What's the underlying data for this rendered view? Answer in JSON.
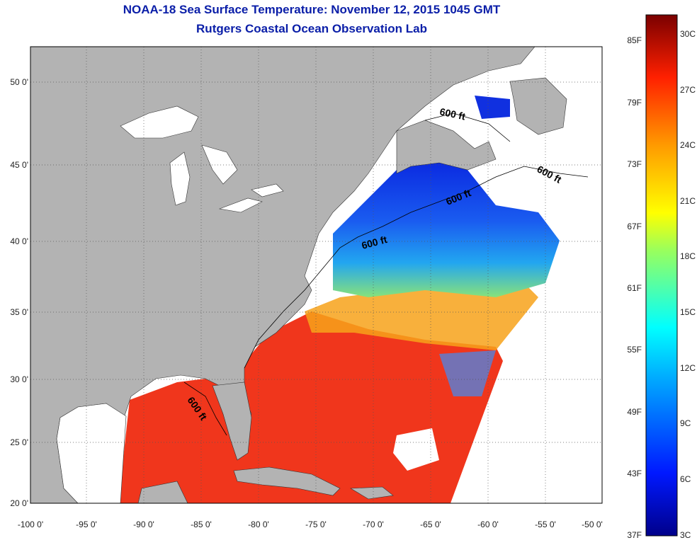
{
  "title": {
    "line1": "NOAA-18 Sea Surface Temperature:  November 12, 2015 1045 GMT",
    "line2": "Rutgers Coastal Ocean Observation Lab"
  },
  "map": {
    "lon_labels": [
      "-100 0'",
      "-95 0'",
      "-90 0'",
      "-85 0'",
      "-80 0'",
      "-75 0'",
      "-70 0'",
      "-65 0'",
      "-60 0'",
      "-55 0'",
      "-50 0'"
    ],
    "lat_labels": [
      "50 0'",
      "45 0'",
      "40 0'",
      "35 0'",
      "30 0'",
      "25 0'",
      "20 0'"
    ],
    "contour_labels": [
      "600 ft",
      "600 ft",
      "600 ft",
      "600 ft",
      "600 ft"
    ],
    "colors": {
      "land": "#b3b3b3",
      "no_data": "#ffffff",
      "frame": "#000000"
    }
  },
  "colorbar": {
    "fahrenheit_labels": [
      "85F",
      "79F",
      "73F",
      "67F",
      "61F",
      "55F",
      "49F",
      "43F",
      "37F"
    ],
    "celsius_labels": [
      "30C",
      "27C",
      "24C",
      "21C",
      "18C",
      "15C",
      "12C",
      "9C",
      "6C",
      "3C"
    ]
  }
}
